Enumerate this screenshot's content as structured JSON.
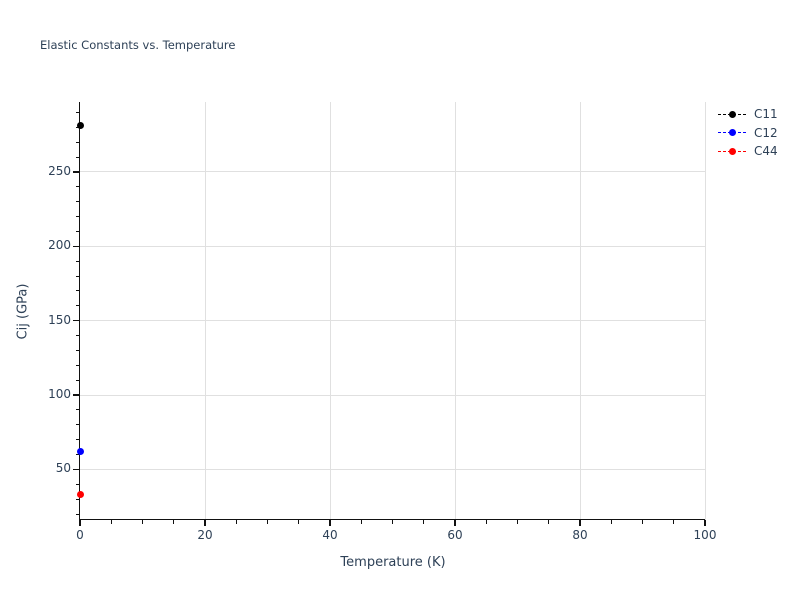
{
  "chart_data": {
    "type": "scatter",
    "title": "Elastic Constants vs. Temperature",
    "xlabel": "Temperature (K)",
    "ylabel": "Cij (GPa)",
    "xlim": [
      0,
      100
    ],
    "ylim": [
      16,
      297
    ],
    "x_major_ticks": [
      0,
      20,
      40,
      60,
      80,
      100
    ],
    "y_major_ticks": [
      50,
      100,
      150,
      200,
      250
    ],
    "x_minor_step": 5,
    "y_minor_step": 10,
    "grid": true,
    "line_style": "dashed",
    "marker": "circle",
    "legend_position": "upper-right-outside",
    "legend_entries": [
      "C11",
      "C12",
      "C44"
    ],
    "series": [
      {
        "name": "C11",
        "color": "#000000",
        "x": [
          0
        ],
        "y": [
          281
        ]
      },
      {
        "name": "C12",
        "color": "#0000ff",
        "x": [
          0
        ],
        "y": [
          62
        ]
      },
      {
        "name": "C44",
        "color": "#ff0000",
        "x": [
          0
        ],
        "y": [
          33
        ]
      }
    ],
    "colors": {
      "text": "#2e4157",
      "grid": "#e0e0e0",
      "axis": "#111111",
      "background": "#ffffff"
    }
  }
}
